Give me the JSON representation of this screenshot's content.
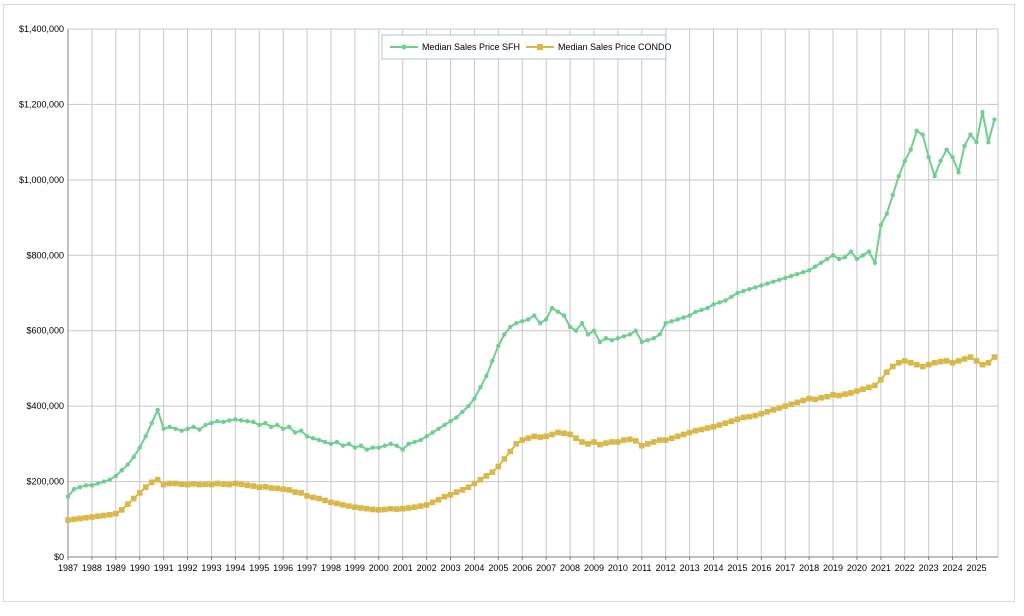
{
  "chart_data": {
    "type": "line",
    "title": "",
    "xlabel": "",
    "ylabel": "",
    "ylim": [
      0,
      1400000
    ],
    "xlim": [
      1987,
      2025.9
    ],
    "grid": true,
    "legend_position": "top-center",
    "y_ticks": [
      "$0",
      "$200,000",
      "$400,000",
      "$600,000",
      "$800,000",
      "$1,000,000",
      "$1,200,000",
      "$1,400,000"
    ],
    "y_tick_values": [
      0,
      200000,
      400000,
      600000,
      800000,
      1000000,
      1200000,
      1400000
    ],
    "x_ticks": [
      "1987",
      "1988",
      "1989",
      "1990",
      "1991",
      "1992",
      "1993",
      "1994",
      "1995",
      "1996",
      "1997",
      "1998",
      "1999",
      "2000",
      "2001",
      "2002",
      "2003",
      "2004",
      "2005",
      "2006",
      "2007",
      "2008",
      "2009",
      "2010",
      "2011",
      "2012",
      "2013",
      "2014",
      "2015",
      "2016",
      "2017",
      "2018",
      "2019",
      "2020",
      "2021",
      "2022",
      "2023",
      "2024",
      "2025"
    ],
    "series": [
      {
        "name": "Median Sales Price SFH",
        "color": "#6fcf8f",
        "marker": "circle",
        "x": [
          1987.0,
          1987.25,
          1987.5,
          1987.75,
          1988.0,
          1988.25,
          1988.5,
          1988.75,
          1989.0,
          1989.25,
          1989.5,
          1989.75,
          1990.0,
          1990.25,
          1990.5,
          1990.75,
          1991.0,
          1991.25,
          1991.5,
          1991.75,
          1992.0,
          1992.25,
          1992.5,
          1992.75,
          1993.0,
          1993.25,
          1993.5,
          1993.75,
          1994.0,
          1994.25,
          1994.5,
          1994.75,
          1995.0,
          1995.25,
          1995.5,
          1995.75,
          1996.0,
          1996.25,
          1996.5,
          1996.75,
          1997.0,
          1997.25,
          1997.5,
          1997.75,
          1998.0,
          1998.25,
          1998.5,
          1998.75,
          1999.0,
          1999.25,
          1999.5,
          1999.75,
          2000.0,
          2000.25,
          2000.5,
          2000.75,
          2001.0,
          2001.25,
          2001.5,
          2001.75,
          2002.0,
          2002.25,
          2002.5,
          2002.75,
          2003.0,
          2003.25,
          2003.5,
          2003.75,
          2004.0,
          2004.25,
          2004.5,
          2004.75,
          2005.0,
          2005.25,
          2005.5,
          2005.75,
          2006.0,
          2006.25,
          2006.5,
          2006.75,
          2007.0,
          2007.25,
          2007.5,
          2007.75,
          2008.0,
          2008.25,
          2008.5,
          2008.75,
          2009.0,
          2009.25,
          2009.5,
          2009.75,
          2010.0,
          2010.25,
          2010.5,
          2010.75,
          2011.0,
          2011.25,
          2011.5,
          2011.75,
          2012.0,
          2012.25,
          2012.5,
          2012.75,
          2013.0,
          2013.25,
          2013.5,
          2013.75,
          2014.0,
          2014.25,
          2014.5,
          2014.75,
          2015.0,
          2015.25,
          2015.5,
          2015.75,
          2016.0,
          2016.25,
          2016.5,
          2016.75,
          2017.0,
          2017.25,
          2017.5,
          2017.75,
          2018.0,
          2018.25,
          2018.5,
          2018.75,
          2019.0,
          2019.25,
          2019.5,
          2019.75,
          2020.0,
          2020.25,
          2020.5,
          2020.75,
          2021.0,
          2021.25,
          2021.5,
          2021.75,
          2022.0,
          2022.25,
          2022.5,
          2022.75,
          2023.0,
          2023.25,
          2023.5,
          2023.75,
          2024.0,
          2024.25,
          2024.5,
          2024.75,
          2025.0,
          2025.25,
          2025.5,
          2025.75
        ],
        "values": [
          160000,
          180000,
          185000,
          190000,
          190000,
          195000,
          200000,
          205000,
          215000,
          230000,
          245000,
          265000,
          290000,
          320000,
          355000,
          390000,
          340000,
          345000,
          340000,
          335000,
          340000,
          345000,
          338000,
          350000,
          355000,
          360000,
          358000,
          362000,
          365000,
          362000,
          360000,
          358000,
          350000,
          355000,
          345000,
          350000,
          340000,
          345000,
          330000,
          335000,
          320000,
          315000,
          310000,
          305000,
          300000,
          305000,
          295000,
          300000,
          290000,
          295000,
          285000,
          290000,
          290000,
          295000,
          300000,
          295000,
          285000,
          300000,
          305000,
          310000,
          320000,
          330000,
          340000,
          350000,
          360000,
          370000,
          385000,
          400000,
          420000,
          450000,
          480000,
          520000,
          560000,
          590000,
          610000,
          620000,
          625000,
          630000,
          640000,
          620000,
          630000,
          660000,
          650000,
          640000,
          610000,
          600000,
          620000,
          590000,
          600000,
          570000,
          580000,
          575000,
          580000,
          585000,
          590000,
          600000,
          570000,
          575000,
          580000,
          590000,
          620000,
          625000,
          630000,
          635000,
          640000,
          650000,
          655000,
          660000,
          670000,
          675000,
          680000,
          690000,
          700000,
          705000,
          710000,
          715000,
          720000,
          725000,
          730000,
          735000,
          740000,
          745000,
          750000,
          755000,
          760000,
          770000,
          780000,
          790000,
          800000,
          790000,
          795000,
          810000,
          790000,
          800000,
          810000,
          780000,
          880000,
          910000,
          960000,
          1010000,
          1050000,
          1080000,
          1130000,
          1120000,
          1060000,
          1010000,
          1050000,
          1080000,
          1060000,
          1020000,
          1090000,
          1120000,
          1100000,
          1180000,
          1100000,
          1160000
        ]
      },
      {
        "name": "Median Sales Price CONDO",
        "color": "#d9b84a",
        "marker": "square",
        "x": [
          1987.0,
          1987.25,
          1987.5,
          1987.75,
          1988.0,
          1988.25,
          1988.5,
          1988.75,
          1989.0,
          1989.25,
          1989.5,
          1989.75,
          1990.0,
          1990.25,
          1990.5,
          1990.75,
          1991.0,
          1991.25,
          1991.5,
          1991.75,
          1992.0,
          1992.25,
          1992.5,
          1992.75,
          1993.0,
          1993.25,
          1993.5,
          1993.75,
          1994.0,
          1994.25,
          1994.5,
          1994.75,
          1995.0,
          1995.25,
          1995.5,
          1995.75,
          1996.0,
          1996.25,
          1996.5,
          1996.75,
          1997.0,
          1997.25,
          1997.5,
          1997.75,
          1998.0,
          1998.25,
          1998.5,
          1998.75,
          1999.0,
          1999.25,
          1999.5,
          1999.75,
          2000.0,
          2000.25,
          2000.5,
          2000.75,
          2001.0,
          2001.25,
          2001.5,
          2001.75,
          2002.0,
          2002.25,
          2002.5,
          2002.75,
          2003.0,
          2003.25,
          2003.5,
          2003.75,
          2004.0,
          2004.25,
          2004.5,
          2004.75,
          2005.0,
          2005.25,
          2005.5,
          2005.75,
          2006.0,
          2006.25,
          2006.5,
          2006.75,
          2007.0,
          2007.25,
          2007.5,
          2007.75,
          2008.0,
          2008.25,
          2008.5,
          2008.75,
          2009.0,
          2009.25,
          2009.5,
          2009.75,
          2010.0,
          2010.25,
          2010.5,
          2010.75,
          2011.0,
          2011.25,
          2011.5,
          2011.75,
          2012.0,
          2012.25,
          2012.5,
          2012.75,
          2013.0,
          2013.25,
          2013.5,
          2013.75,
          2014.0,
          2014.25,
          2014.5,
          2014.75,
          2015.0,
          2015.25,
          2015.5,
          2015.75,
          2016.0,
          2016.25,
          2016.5,
          2016.75,
          2017.0,
          2017.25,
          2017.5,
          2017.75,
          2018.0,
          2018.25,
          2018.5,
          2018.75,
          2019.0,
          2019.25,
          2019.5,
          2019.75,
          2020.0,
          2020.25,
          2020.5,
          2020.75,
          2021.0,
          2021.25,
          2021.5,
          2021.75,
          2022.0,
          2022.25,
          2022.5,
          2022.75,
          2023.0,
          2023.25,
          2023.5,
          2023.75,
          2024.0,
          2024.25,
          2024.5,
          2024.75,
          2025.0,
          2025.25,
          2025.5,
          2025.75
        ],
        "values": [
          98000,
          100000,
          102000,
          104000,
          106000,
          108000,
          110000,
          112000,
          115000,
          125000,
          140000,
          155000,
          170000,
          185000,
          198000,
          205000,
          192000,
          195000,
          195000,
          193000,
          192000,
          194000,
          192000,
          193000,
          192000,
          195000,
          193000,
          192000,
          195000,
          193000,
          190000,
          188000,
          185000,
          186000,
          183000,
          182000,
          180000,
          178000,
          172000,
          170000,
          162000,
          158000,
          155000,
          150000,
          145000,
          142000,
          138000,
          135000,
          132000,
          130000,
          128000,
          126000,
          125000,
          126000,
          128000,
          127000,
          128000,
          130000,
          132000,
          135000,
          138000,
          145000,
          152000,
          160000,
          165000,
          172000,
          178000,
          185000,
          195000,
          205000,
          215000,
          225000,
          240000,
          260000,
          280000,
          300000,
          310000,
          315000,
          320000,
          318000,
          320000,
          325000,
          330000,
          328000,
          325000,
          315000,
          305000,
          300000,
          305000,
          298000,
          302000,
          305000,
          305000,
          310000,
          312000,
          308000,
          295000,
          300000,
          305000,
          310000,
          310000,
          315000,
          320000,
          325000,
          330000,
          335000,
          338000,
          342000,
          345000,
          350000,
          355000,
          360000,
          365000,
          370000,
          372000,
          375000,
          380000,
          385000,
          390000,
          395000,
          400000,
          405000,
          410000,
          415000,
          420000,
          418000,
          422000,
          425000,
          430000,
          428000,
          432000,
          435000,
          440000,
          445000,
          450000,
          455000,
          470000,
          490000,
          505000,
          515000,
          520000,
          515000,
          510000,
          505000,
          510000,
          515000,
          518000,
          520000,
          515000,
          520000,
          525000,
          530000,
          520000,
          510000,
          515000,
          530000
        ]
      }
    ]
  }
}
